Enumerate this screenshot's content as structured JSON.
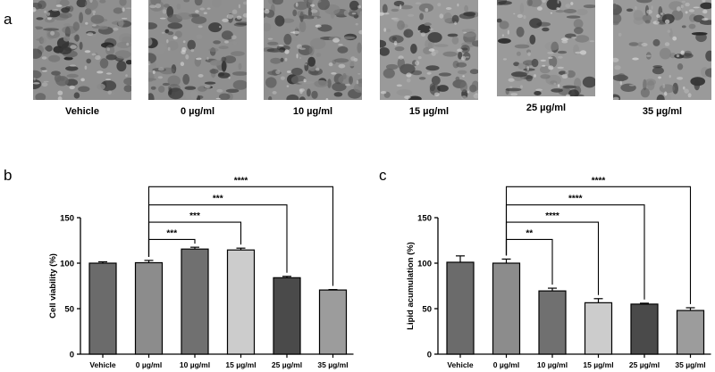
{
  "panels": {
    "a": {
      "letter": "a",
      "images": [
        {
          "label": "Vehicle"
        },
        {
          "label": "0 µg/ml"
        },
        {
          "label": "10 µg/ml"
        },
        {
          "label": "15 µg/ml"
        },
        {
          "label": "25 µg/ml"
        },
        {
          "label": "35 µg/ml"
        }
      ]
    },
    "b": {
      "letter": "b"
    },
    "c": {
      "letter": "c"
    }
  },
  "chart_data": [
    {
      "type": "bar",
      "panel": "b",
      "title": "",
      "xlabel": "",
      "ylabel": "Cell viability (%)",
      "ylim": [
        0,
        150
      ],
      "yticks": [
        0,
        50,
        100,
        150
      ],
      "categories": [
        "Vehicle",
        "0 µg/ml",
        "10 µg/ml",
        "15 µg/ml",
        "25 µg/ml",
        "35 µg/ml"
      ],
      "values": [
        100,
        100.5,
        115.5,
        114.5,
        84,
        70.5
      ],
      "errors": [
        1.5,
        2.5,
        2,
        2,
        1.5,
        0.5
      ],
      "colors": [
        "#6b6b6b",
        "#8c8c8c",
        "#707070",
        "#cccccc",
        "#4a4a4a",
        "#9c9c9c"
      ],
      "grid": false,
      "significance": [
        {
          "from": 1,
          "to": 2,
          "label": "***"
        },
        {
          "from": 1,
          "to": 3,
          "label": "***"
        },
        {
          "from": 1,
          "to": 4,
          "label": "***"
        },
        {
          "from": 1,
          "to": 5,
          "label": "****"
        }
      ]
    },
    {
      "type": "bar",
      "panel": "c",
      "title": "",
      "xlabel": "",
      "ylabel": "Lipid acumulation (%)",
      "ylim": [
        0,
        150
      ],
      "yticks": [
        0,
        50,
        100,
        150
      ],
      "categories": [
        "Vehicle",
        "0 µg/ml",
        "10 µg/ml",
        "15 µg/ml",
        "25 µg/ml",
        "35 µg/ml"
      ],
      "values": [
        101,
        100,
        69.5,
        56.5,
        55,
        48
      ],
      "errors": [
        7,
        4.5,
        3,
        4.5,
        1,
        3
      ],
      "colors": [
        "#6b6b6b",
        "#8c8c8c",
        "#707070",
        "#cccccc",
        "#4a4a4a",
        "#9c9c9c"
      ],
      "grid": false,
      "significance": [
        {
          "from": 1,
          "to": 2,
          "label": "**"
        },
        {
          "from": 1,
          "to": 3,
          "label": "****"
        },
        {
          "from": 1,
          "to": 4,
          "label": "****"
        },
        {
          "from": 1,
          "to": 5,
          "label": "****"
        }
      ]
    }
  ]
}
